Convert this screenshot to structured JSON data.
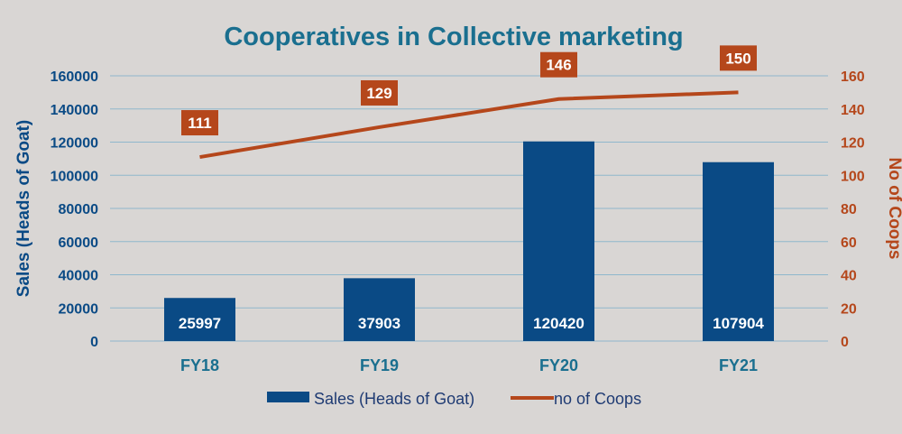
{
  "chart_data": {
    "type": "bar",
    "title": "Cooperatives in Collective marketing",
    "categories": [
      "FY18",
      "FY19",
      "FY20",
      "FY21"
    ],
    "series": [
      {
        "name": "Sales (Heads of Goat)",
        "type": "bar",
        "axis": "left",
        "values": [
          25997,
          37903,
          120420,
          107904
        ],
        "color": "#0a4a85"
      },
      {
        "name": "no of Coops",
        "type": "line",
        "axis": "right",
        "values": [
          111,
          129,
          146,
          150
        ],
        "color": "#b5471b"
      }
    ],
    "ylabel": "Sales (Heads of Goat)",
    "y2label": "No of Coops",
    "ylim": [
      0,
      160000
    ],
    "y2lim": [
      0,
      160
    ],
    "yticks": [
      "0",
      "20000",
      "40000",
      "60000",
      "80000",
      "100000",
      "120000",
      "140000",
      "160000"
    ],
    "y2ticks": [
      "0",
      "20",
      "40",
      "60",
      "80",
      "100",
      "120",
      "140",
      "160"
    ],
    "grid": true,
    "legend_position": "bottom",
    "colors": {
      "background": "#d9d6d4",
      "title": "#1a6f8f",
      "left_axis": "#0a4a85",
      "right_axis": "#b5471b",
      "category_labels": "#1a6f8f",
      "grid": "#8fb7cc"
    }
  }
}
